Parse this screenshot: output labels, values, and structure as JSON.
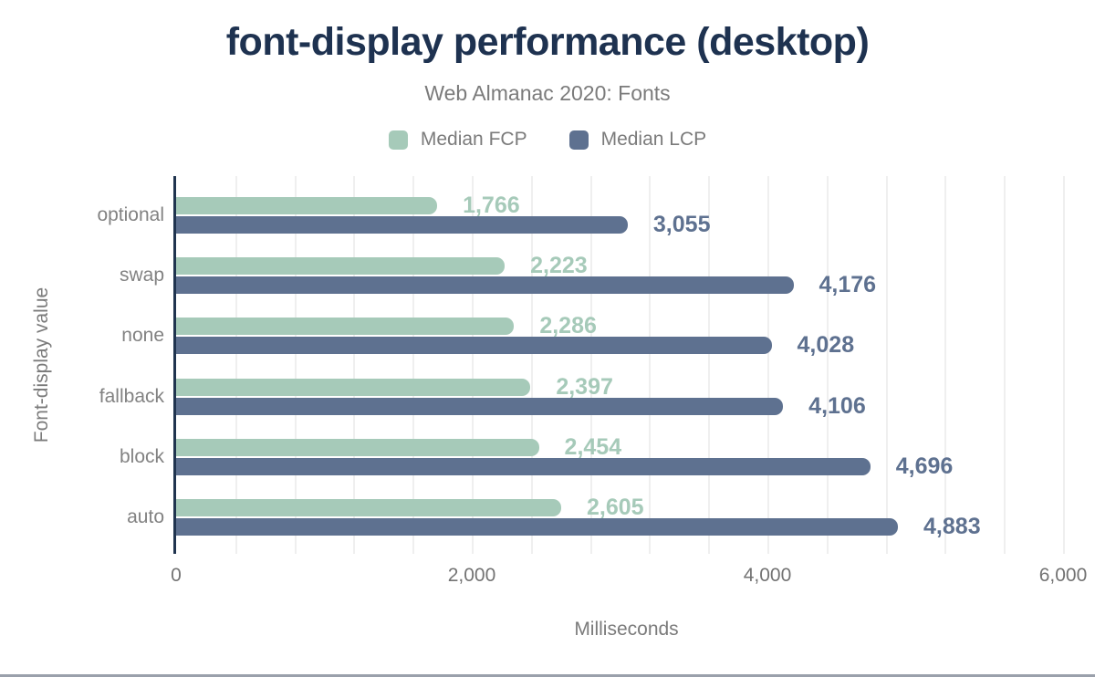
{
  "chart_data": {
    "type": "bar",
    "orientation": "horizontal",
    "title": "font-display performance (desktop)",
    "subtitle": "Web Almanac 2020: Fonts",
    "categories": [
      "optional",
      "swap",
      "none",
      "fallback",
      "block",
      "auto"
    ],
    "series": [
      {
        "name": "Median FCP",
        "color": "#a6cab9",
        "values": [
          1766,
          2223,
          2286,
          2397,
          2454,
          2605
        ]
      },
      {
        "name": "Median LCP",
        "color": "#5e7190",
        "values": [
          3055,
          4176,
          4028,
          4106,
          4696,
          4883
        ]
      }
    ],
    "xlabel": "Milliseconds",
    "ylabel": "Font-display value",
    "xlim": [
      0,
      6000
    ],
    "x_ticks": [
      0,
      2000,
      4000,
      6000
    ],
    "x_tick_labels": [
      "0",
      "2,000",
      "4,000",
      "6,000"
    ],
    "minor_gridline_step": 400,
    "grid": "vertical-minor-lines",
    "legend_position": "top-center",
    "value_labels": "outside-end, formatted with thousands separator"
  },
  "style": {
    "title_color": "#1e3250",
    "subtitle_color": "#7b7b7b",
    "label_gray": "#828282",
    "tick_gray": "#737373",
    "axis_line_color": "#20344f",
    "gridline_color": "#efefef",
    "background": "#ffffff",
    "bottom_bar_color": "#9aa0ab"
  }
}
